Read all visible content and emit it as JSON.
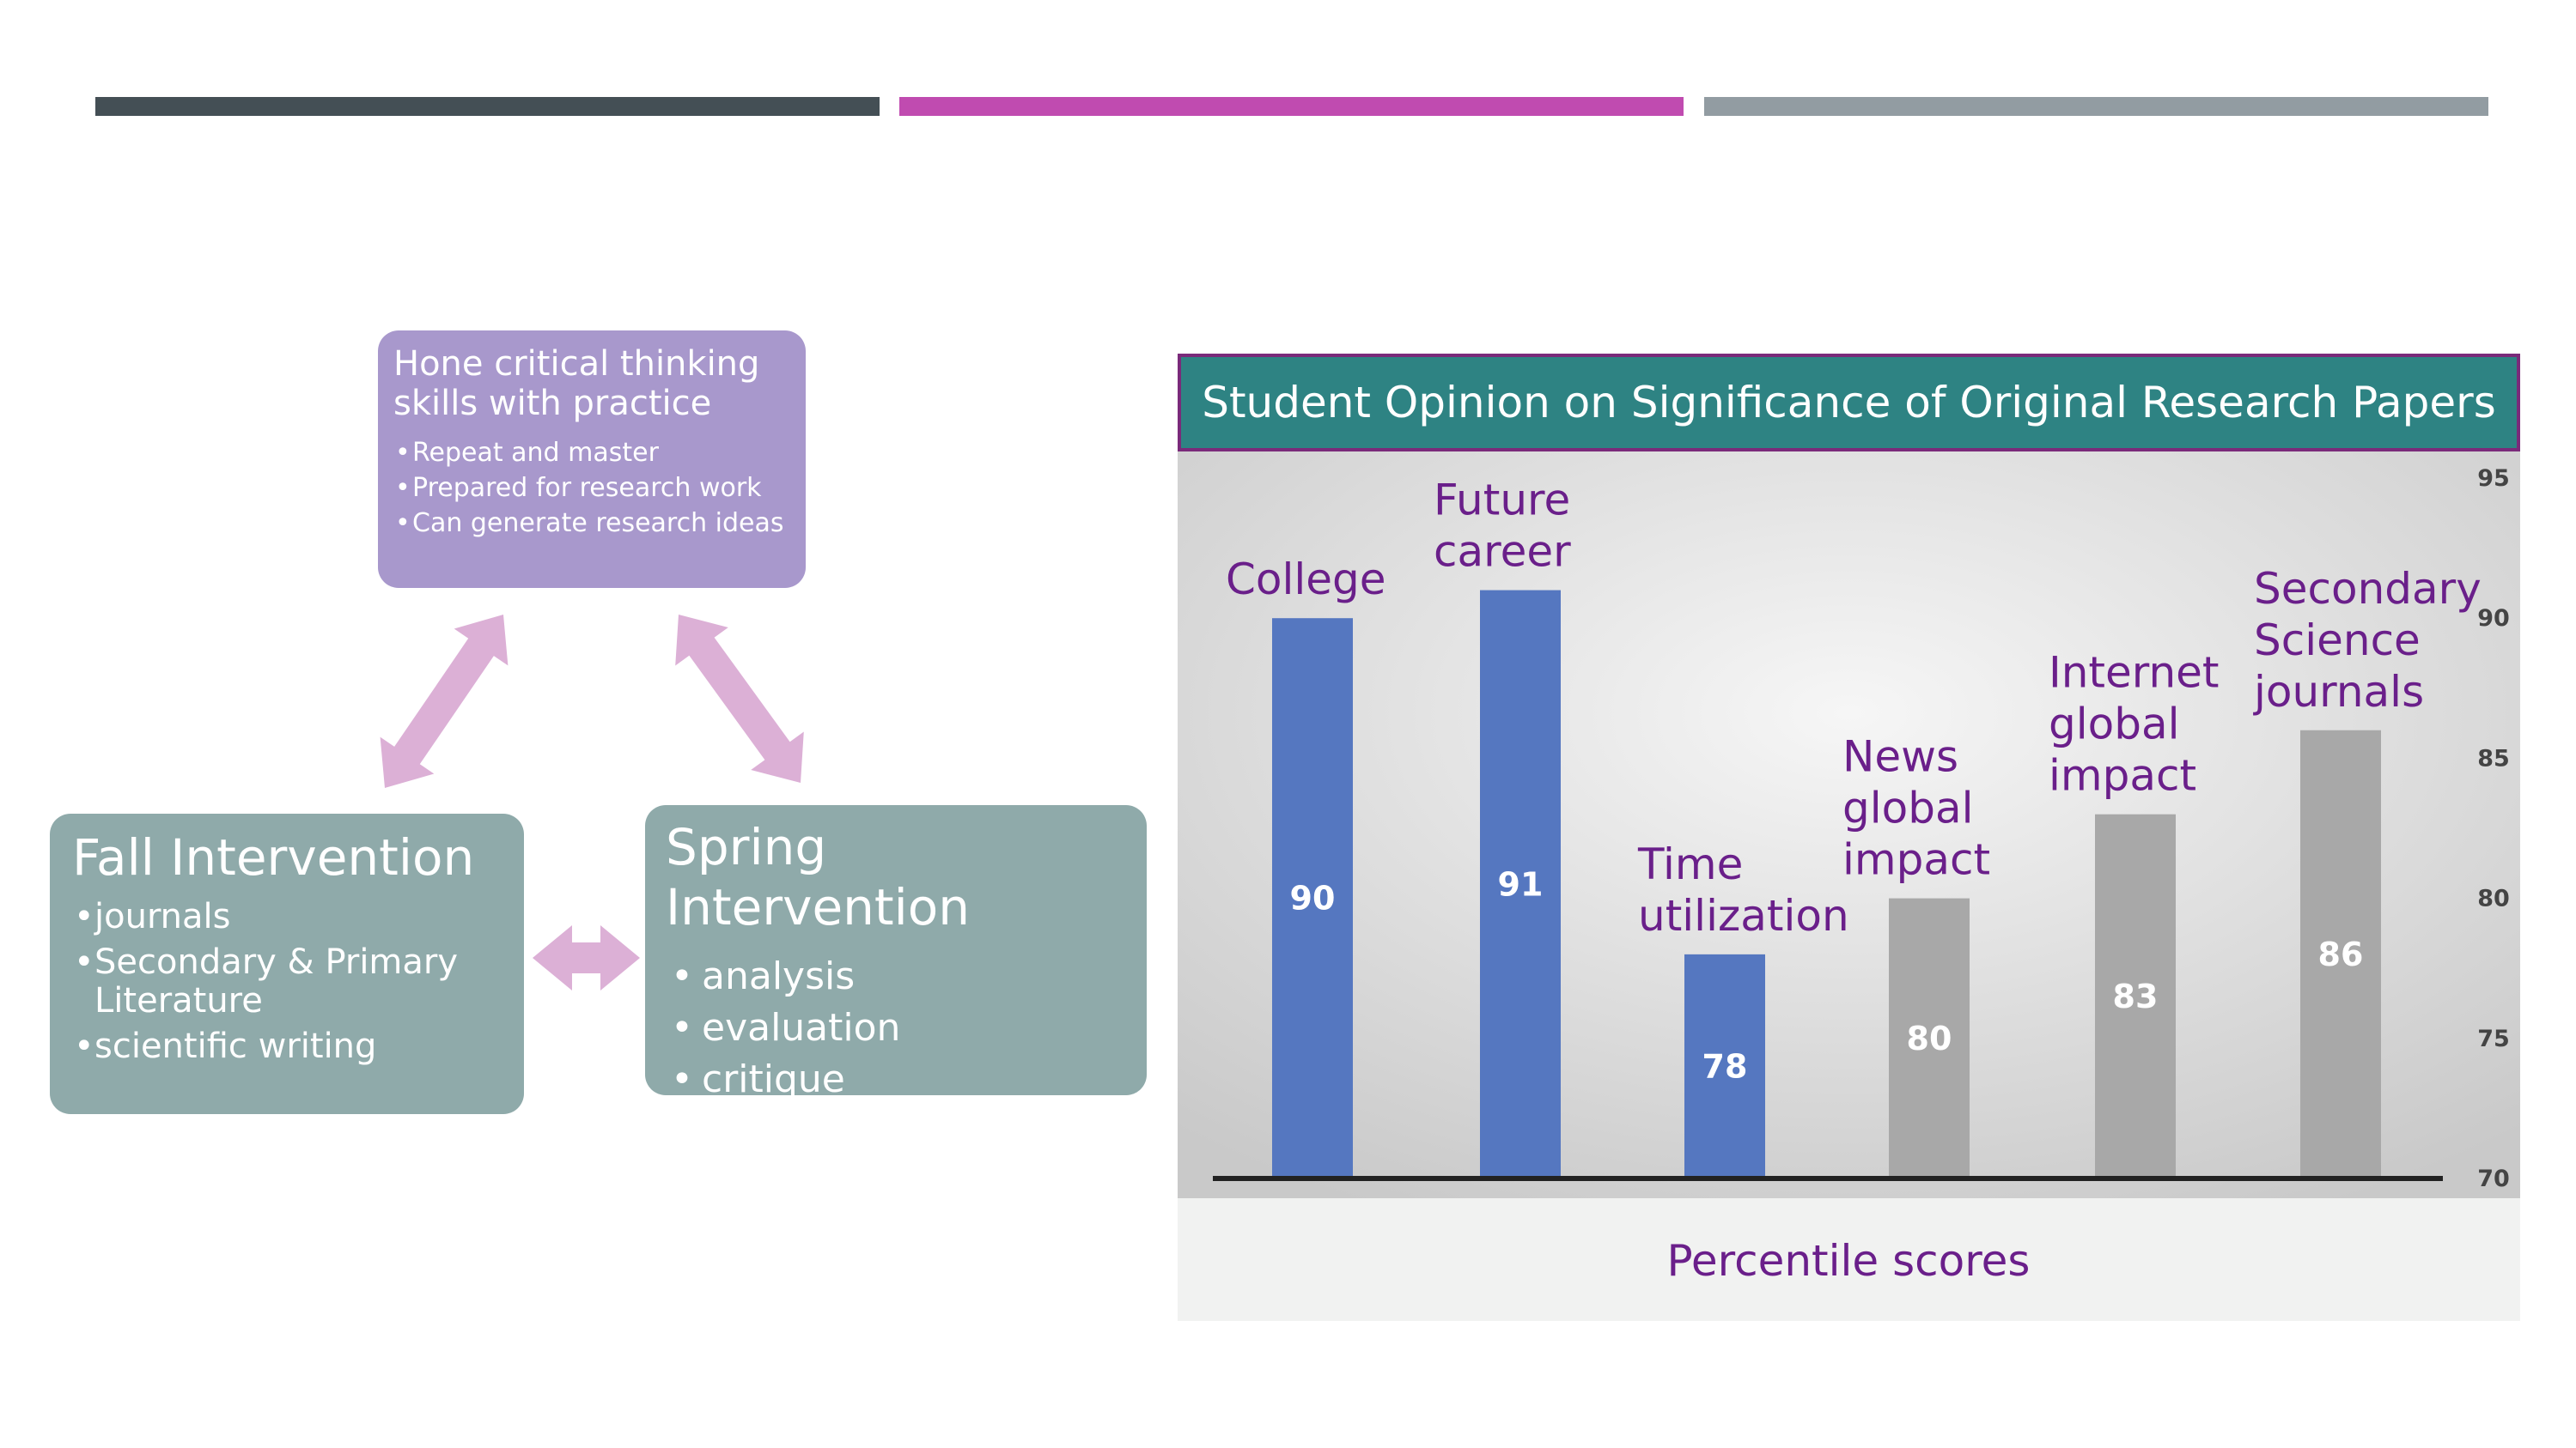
{
  "colors": {
    "bar1": "#444f55",
    "bar2": "#c04bb0",
    "bar3": "#929ca2",
    "cycle_top": "#a898cc",
    "cycle_box": "#8faaaa",
    "cycle_arrow": "#dcb0d6",
    "chart_title_bg": "#2e8383",
    "chart_title_border": "#7a2a7a",
    "bar_blue": "#5577c0",
    "bar_gray": "#a8a8a8",
    "label_purple": "#6a1f8a"
  },
  "cycle": {
    "top": {
      "title": "Hone critical thinking skills with practice",
      "items": [
        "Repeat and master",
        "Prepared for research work",
        "Can generate research ideas"
      ]
    },
    "fall": {
      "title": "Fall Intervention",
      "items": [
        "journals",
        "Secondary & Primary Literature",
        "scientific writing"
      ]
    },
    "spring": {
      "title": "Spring Intervention",
      "items": [
        "analysis",
        "evaluation",
        "critique"
      ]
    }
  },
  "chart_data": {
    "type": "bar",
    "title": "Student Opinion on Significance of  Original Research Papers",
    "xlabel": "Percentile scores",
    "ylabel": "",
    "categories": [
      [
        "College"
      ],
      [
        "Future",
        "career"
      ],
      [
        "Time",
        "utilization"
      ],
      [
        "News",
        "global",
        "impact"
      ],
      [
        "Internet",
        "global",
        "impact"
      ],
      [
        "Secondary",
        "Science",
        "journals"
      ]
    ],
    "values": [
      90,
      91,
      78,
      80,
      83,
      86
    ],
    "value_labels": [
      "90",
      "91",
      "78",
      "80",
      "83",
      "86"
    ],
    "bar_colors": [
      "#5577c0",
      "#5577c0",
      "#5577c0",
      "#a8a8a8",
      "#a8a8a8",
      "#a8a8a8"
    ],
    "ylim": [
      70,
      95
    ],
    "yticks": [
      95,
      90,
      85,
      80,
      75,
      70
    ],
    "ytick_labels": [
      "95",
      "90",
      "85",
      "80",
      "75",
      "70"
    ],
    "y_axis_position": "right",
    "grid": false,
    "legend": "none"
  }
}
